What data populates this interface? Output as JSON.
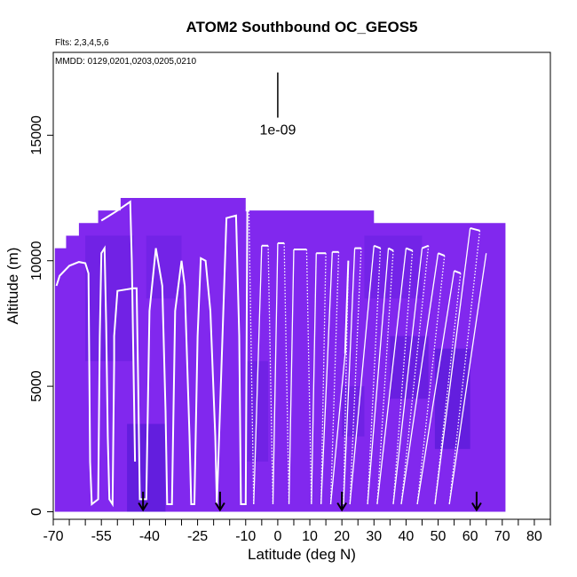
{
  "chart_data": {
    "type": "heatmap",
    "title": "ATOM2 Southbound OC_GEOS5",
    "subtitle_flights": "Flts: 2,3,4,5,6",
    "subtitle_dates": "MMDD: 0129,0201,0203,0205,0210",
    "xlabel": "Latitude (deg N)",
    "ylabel": "Altitude (m)",
    "xlim": [
      -70,
      85
    ],
    "ylim": [
      -300,
      18300
    ],
    "x_ticks": [
      -70,
      -55,
      -40,
      -25,
      -10,
      0,
      10,
      20,
      30,
      40,
      50,
      60,
      70,
      80
    ],
    "x_tick_labels": [
      "-70",
      "-55",
      "-40",
      "-25",
      "-10",
      "0",
      "10",
      "20",
      "30",
      "40",
      "50",
      "60",
      "70",
      "80"
    ],
    "x_minor_ticks": [
      -65,
      -60,
      -50,
      -45,
      -35,
      -30,
      -20,
      -15,
      -5,
      5,
      15,
      25,
      35,
      45,
      55,
      65,
      75,
      85
    ],
    "y_ticks": [
      0,
      5000,
      10000,
      15000
    ],
    "y_tick_labels": [
      "0",
      "5000",
      "10000",
      "15000"
    ],
    "legend_value_label": "1e-09",
    "legend_bar": {
      "x": 0,
      "y_range": [
        15700,
        17500
      ]
    },
    "arrow_markers_lat": [
      -42,
      -18,
      20,
      62
    ],
    "curtain_envelope": [
      [
        -69.5,
        0,
        10500
      ],
      [
        -66,
        0,
        11000
      ],
      [
        -62,
        0,
        11500
      ],
      [
        -56,
        0,
        12000
      ],
      [
        -49,
        0,
        12500
      ],
      [
        -10,
        0,
        12000
      ],
      [
        -1,
        0,
        12000
      ],
      [
        30,
        0,
        11500
      ],
      [
        71,
        0,
        11200
      ]
    ],
    "darker_patches": [
      {
        "lat": [
          -47,
          -35
        ],
        "alt": [
          0,
          3500
        ],
        "level": 0.7
      },
      {
        "lat": [
          -10,
          -3
        ],
        "alt": [
          2000,
          6000
        ],
        "level": 0.35
      },
      {
        "lat": [
          35,
          47
        ],
        "alt": [
          4500,
          7000
        ],
        "level": 0.55
      },
      {
        "lat": [
          49,
          60
        ],
        "alt": [
          2500,
          6500
        ],
        "level": 0.7
      },
      {
        "lat": [
          20,
          27
        ],
        "alt": [
          3000,
          5000
        ],
        "level": 0.4
      },
      {
        "lat": [
          -60,
          -45
        ],
        "alt": [
          6000,
          11000
        ],
        "level": 0.35
      },
      {
        "lat": [
          -41,
          -30
        ],
        "alt": [
          8500,
          11000
        ],
        "level": 0.3
      },
      {
        "lat": [
          27,
          45
        ],
        "alt": [
          8500,
          11000
        ],
        "level": 0.3
      }
    ],
    "flight_track": [
      [
        -69,
        9000
      ],
      [
        -68,
        9400
      ],
      [
        -65,
        9800
      ],
      [
        -62,
        9950
      ],
      [
        -60,
        9900
      ],
      [
        -59,
        9500
      ],
      [
        -58.5,
        2000
      ],
      [
        -58,
        300
      ],
      [
        -56,
        500
      ],
      [
        -55.5,
        7000
      ],
      [
        -55,
        10300
      ],
      [
        -54,
        10500
      ],
      [
        -53.5,
        7500
      ],
      [
        -53,
        3000
      ],
      [
        -52.5,
        500
      ],
      [
        -51.5,
        300
      ],
      [
        -51,
        6000
      ],
      [
        -51,
        7000
      ],
      [
        -50,
        8800
      ],
      [
        -45,
        8900
      ],
      [
        -44,
        8900
      ],
      [
        -43.5,
        5000
      ],
      [
        -43,
        500
      ],
      [
        -41,
        500
      ],
      [
        -40,
        8000
      ],
      [
        -38,
        10500
      ],
      [
        -36,
        9000
      ],
      [
        -35,
        4000
      ],
      [
        -34.5,
        300
      ],
      [
        -33,
        300
      ],
      [
        -32,
        8000
      ],
      [
        -30,
        10000
      ],
      [
        -29,
        9000
      ],
      [
        -27.5,
        3000
      ],
      [
        -27,
        300
      ],
      [
        -26,
        300
      ],
      [
        -25,
        7000
      ],
      [
        -24,
        10100
      ],
      [
        -22.5,
        10000
      ],
      [
        -21,
        8000
      ],
      [
        -19.5,
        3000
      ],
      [
        -19,
        300
      ],
      [
        -16,
        11700
      ],
      [
        -13,
        11800
      ],
      [
        -12,
        7000
      ],
      [
        -11.5,
        300
      ],
      [
        -10,
        300
      ],
      [
        -9.5,
        12000
      ]
    ],
    "flight_track_2": [
      [
        -55,
        11600
      ],
      [
        -50,
        12000
      ],
      [
        -46,
        12350
      ],
      [
        -45.5,
        10000
      ],
      [
        -45,
        6000
      ],
      [
        -44.5,
        2000
      ]
    ],
    "profile_tops": [
      [
        -10,
        12000
      ],
      [
        -9,
        12000
      ],
      [
        -5,
        10600
      ],
      [
        -3,
        10600
      ],
      [
        0,
        10700
      ],
      [
        2,
        10700
      ],
      [
        5,
        10450
      ],
      [
        9,
        10450
      ],
      [
        12,
        10300
      ],
      [
        15,
        10300
      ],
      [
        17,
        10350
      ],
      [
        19,
        10350
      ],
      [
        21,
        6300
      ],
      [
        22,
        10000
      ],
      [
        24,
        10500
      ],
      [
        26,
        10500
      ],
      [
        30,
        10600
      ],
      [
        32,
        10500
      ],
      [
        34.5,
        10500
      ],
      [
        36,
        10400
      ],
      [
        40,
        10500
      ],
      [
        42,
        10400
      ],
      [
        45,
        10500
      ],
      [
        47,
        10600
      ],
      [
        50,
        10300
      ],
      [
        52,
        10200
      ],
      [
        55,
        9600
      ],
      [
        57,
        9500
      ],
      [
        60,
        11300
      ],
      [
        63,
        11200
      ],
      [
        65,
        10300
      ]
    ],
    "profile_bottoms": [
      [
        -7.5,
        300
      ],
      [
        -1.5,
        300
      ],
      [
        3.5,
        300
      ],
      [
        10.5,
        300
      ],
      [
        13.5,
        300
      ],
      [
        16.5,
        300
      ],
      [
        20.5,
        300
      ],
      [
        22.5,
        300
      ],
      [
        28,
        300
      ],
      [
        31,
        300
      ],
      [
        36,
        300
      ],
      [
        38.5,
        300
      ],
      [
        43.5,
        300
      ],
      [
        49,
        300
      ],
      [
        53.5,
        300
      ],
      [
        56.5,
        300
      ],
      [
        59,
        300
      ],
      [
        64,
        300
      ],
      [
        70,
        300
      ]
    ]
  }
}
